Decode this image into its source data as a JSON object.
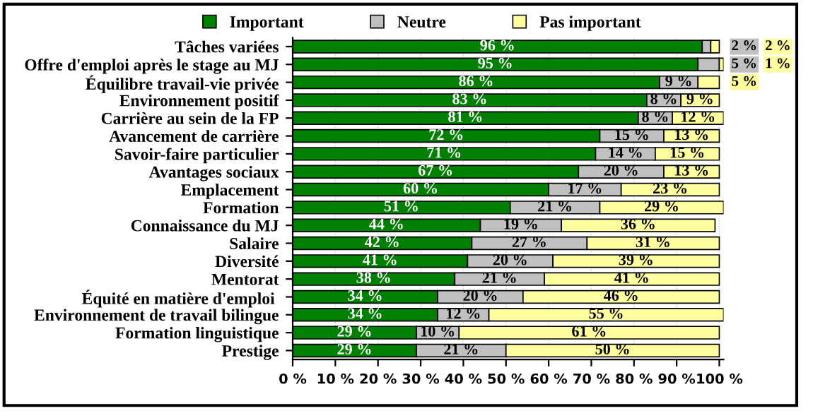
{
  "chart_data": {
    "type": "bar",
    "orientation": "horizontal",
    "stacked": true,
    "legend": "top",
    "grid": "x",
    "categories": [
      "Tâches variées",
      "Offre d'emploi après le stage au MJ",
      "Équilibre travail-vie privée",
      "Environnement positif",
      "Carrière au sein de la FP",
      "Avancement de carrière",
      "Savoir-faire particulier",
      "Avantages sociaux",
      "Emplacement",
      "Formation",
      "Connaissance du MJ",
      "Salaire",
      "Diversité",
      "Mentorat",
      "Équité en matière d'emploi ",
      "Environnement de travail bilingue",
      "Formation linguistique",
      "Prestige"
    ],
    "series": [
      {
        "name": "Important",
        "color": "#008000",
        "values": [
          96,
          95,
          86,
          83,
          81,
          72,
          71,
          67,
          60,
          51,
          44,
          42,
          41,
          38,
          34,
          34,
          29,
          29
        ],
        "value_labels": [
          "96 %",
          "95 %",
          "86 %",
          "83 %",
          "81 %",
          "72 %",
          "71 %",
          "67 %",
          "60 %",
          "51 %",
          "44 %",
          "42 %",
          "41 %",
          "38 %",
          "34 %",
          "34 %",
          "29 %",
          "29 %"
        ]
      },
      {
        "name": "Neutre",
        "color": "#c0c0c0",
        "values": [
          2,
          5,
          9,
          8,
          8,
          15,
          14,
          20,
          17,
          21,
          19,
          27,
          20,
          21,
          20,
          12,
          10,
          21
        ],
        "value_labels": [
          "2 %",
          "5 %",
          "9 %",
          "8 %",
          "8 %",
          "15 %",
          "14 %",
          "20 %",
          "17 %",
          "21 %",
          "19 %",
          "27 %",
          "20 %",
          "21 %",
          "20 %",
          "12 %",
          "10 %",
          "21 %"
        ]
      },
      {
        "name": "Pas important",
        "color": "#ffffa0",
        "values": [
          2,
          1,
          5,
          9,
          12,
          13,
          15,
          13,
          23,
          29,
          36,
          31,
          39,
          41,
          46,
          55,
          61,
          50
        ],
        "value_labels": [
          "2 %",
          "1 %",
          "5 %",
          "9 %",
          "12 %",
          "13 %",
          "15 %",
          "13 %",
          "23 %",
          "29 %",
          "36 %",
          "31 %",
          "39 %",
          "41 %",
          "46 %",
          "55 %",
          "61 %",
          "50 %"
        ]
      }
    ],
    "xlim": [
      0,
      101
    ],
    "xticks": [
      {
        "value": 0,
        "label": "0 %"
      },
      {
        "value": 10,
        "label": "10 %"
      },
      {
        "value": 20,
        "label": "20 %"
      },
      {
        "value": 30,
        "label": "30 %"
      },
      {
        "value": 40,
        "label": "40 %"
      },
      {
        "value": 50,
        "label": "50 %"
      },
      {
        "value": 60,
        "label": "60 %"
      },
      {
        "value": 70,
        "label": "70 %"
      },
      {
        "value": 80,
        "label": "80 %"
      },
      {
        "value": 90,
        "label": "90 %"
      },
      {
        "value": 100,
        "label": "100 %"
      }
    ]
  }
}
